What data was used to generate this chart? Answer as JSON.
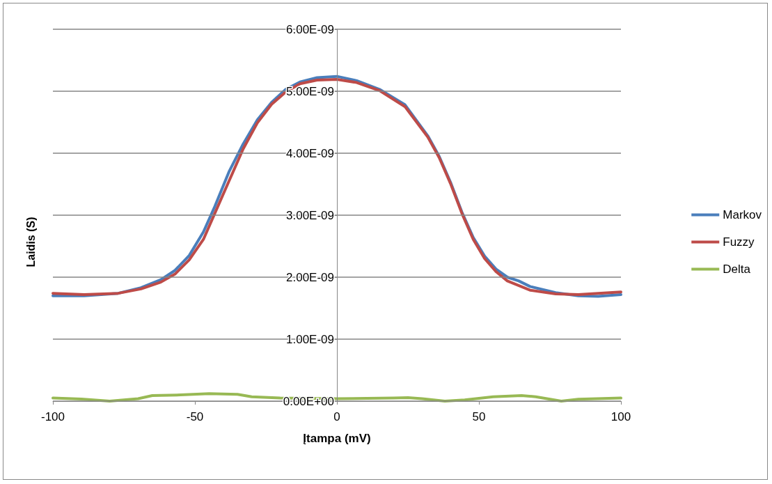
{
  "chart_data": {
    "type": "line",
    "xlabel": "Įtampa (mV)",
    "ylabel": "Laidis (S)",
    "xlim": [
      -100,
      100
    ],
    "xticks": [
      -100,
      -50,
      0,
      50,
      100
    ],
    "ylim": [
      0,
      6e-09
    ],
    "yticks": [
      {
        "value": 0,
        "label": "0.00E+00"
      },
      {
        "value": 1e-09,
        "label": "1.00E-09"
      },
      {
        "value": 2e-09,
        "label": "2.00E-09"
      },
      {
        "value": 3e-09,
        "label": "3.00E-09"
      },
      {
        "value": 4e-09,
        "label": "4.00E-09"
      },
      {
        "value": 5e-09,
        "label": "5.00E-09"
      },
      {
        "value": 6e-09,
        "label": "6.00E-09"
      }
    ],
    "grid": "y",
    "legend": "right",
    "marker": "none",
    "line_style": "solid",
    "series": [
      {
        "name": "Markov",
        "color": "#4a7ebb",
        "x": [
          -100,
          -89,
          -77,
          -69,
          -62,
          -57,
          -52,
          -47,
          -43,
          -38,
          -33,
          -28,
          -23,
          -18,
          -13,
          -7,
          0,
          7,
          15,
          24,
          32,
          36,
          40,
          44,
          48,
          52,
          56,
          60,
          64,
          68,
          77,
          85,
          92,
          100
        ],
        "values": [
          1.7e-09,
          1.7e-09,
          1.74e-09,
          1.83e-09,
          1.96e-09,
          2.11e-09,
          2.35e-09,
          2.73e-09,
          3.14e-09,
          3.7e-09,
          4.15e-09,
          4.54e-09,
          4.82e-09,
          5.03e-09,
          5.15e-09,
          5.22e-09,
          5.24e-09,
          5.17e-09,
          5.03e-09,
          4.78e-09,
          4.28e-09,
          3.95e-09,
          3.53e-09,
          3.05e-09,
          2.64e-09,
          2.34e-09,
          2.13e-09,
          2e-09,
          1.94e-09,
          1.85e-09,
          1.75e-09,
          1.7e-09,
          1.69e-09,
          1.72e-09
        ]
      },
      {
        "name": "Fuzzy",
        "color": "#be4b48",
        "x": [
          -100,
          -89,
          -77,
          -69,
          -62,
          -57,
          -52,
          -47,
          -43,
          -38,
          -33,
          -28,
          -23,
          -18,
          -13,
          -7,
          0,
          7,
          15,
          24,
          32,
          36,
          40,
          44,
          48,
          52,
          56,
          60,
          68,
          77,
          85,
          100
        ],
        "values": [
          1.74e-09,
          1.72e-09,
          1.74e-09,
          1.81e-09,
          1.92e-09,
          2.05e-09,
          2.28e-09,
          2.61e-09,
          3.03e-09,
          3.55e-09,
          4.07e-09,
          4.49e-09,
          4.79e-09,
          4.99e-09,
          5.12e-09,
          5.18e-09,
          5.19e-09,
          5.14e-09,
          5.01e-09,
          4.75e-09,
          4.26e-09,
          3.93e-09,
          3.51e-09,
          3.03e-09,
          2.61e-09,
          2.3e-09,
          2.09e-09,
          1.94e-09,
          1.79e-09,
          1.73e-09,
          1.72e-09,
          1.76e-09
        ]
      },
      {
        "name": "Delta",
        "color": "#98b954",
        "x": [
          -100,
          -90,
          -80,
          -70,
          -65,
          -55,
          -45,
          -35,
          -30,
          -20,
          0,
          20,
          25,
          30,
          38,
          45,
          55,
          65,
          70,
          79,
          85,
          100
        ],
        "values": [
          5e-11,
          3.5e-11,
          0,
          4e-11,
          9e-11,
          1e-10,
          1.2e-10,
          1.1e-10,
          7e-11,
          5e-11,
          4e-11,
          5e-11,
          5.5e-11,
          4e-11,
          0,
          2e-11,
          7e-11,
          9e-11,
          7e-11,
          0,
          3e-11,
          5e-11
        ]
      }
    ]
  }
}
